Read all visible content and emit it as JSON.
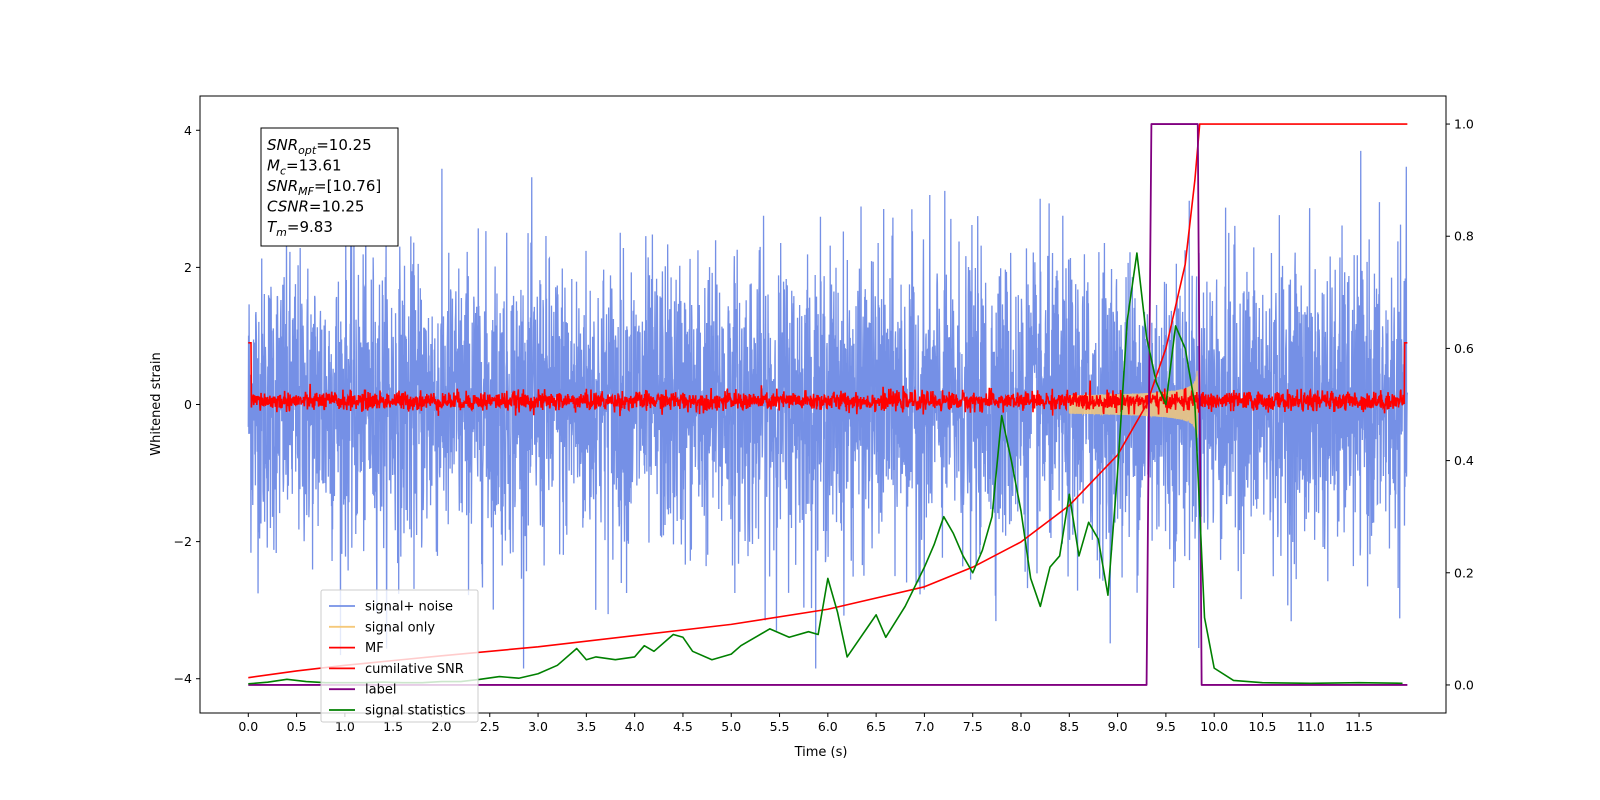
{
  "chart_data": {
    "type": "line",
    "xlabel": "Time (s)",
    "ylabel": "Whitened strain",
    "xlim": [
      -0.5,
      12.4
    ],
    "ylim": [
      -4.5,
      4.5
    ],
    "y2lim": [
      -0.05,
      1.05
    ],
    "grid": false,
    "legend_position": "lower-left",
    "x_ticks": [
      "0.0",
      "0.5",
      "1.0",
      "1.5",
      "2.0",
      "2.5",
      "3.0",
      "3.5",
      "4.0",
      "4.5",
      "5.0",
      "5.5",
      "6.0",
      "6.5",
      "7.0",
      "7.5",
      "8.0",
      "8.5",
      "9.0",
      "9.5",
      "10.0",
      "10.5",
      "11.0",
      "11.5"
    ],
    "y_ticks": [
      "−4",
      "−2",
      "0",
      "2",
      "4"
    ],
    "y2_ticks": [
      "0.0",
      "0.2",
      "0.4",
      "0.6",
      "0.8",
      "1.0"
    ],
    "info_box": [
      {
        "sym": "SNR",
        "sub": "opt",
        "val": "=10.25"
      },
      {
        "sym": "M",
        "sub": "c",
        "val": "=13.61"
      },
      {
        "sym": "SNR",
        "sub": "MF",
        "val": "=[10.76]"
      },
      {
        "sym": "CSNR",
        "sub": "",
        "val": "=10.25"
      },
      {
        "sym": "T",
        "sub": "m",
        "val": "=9.83"
      }
    ],
    "series": [
      {
        "name": "signal+ noise",
        "color": "#7590e6",
        "axis": "left",
        "x_range": [
          0,
          12.0
        ],
        "noise_sigma": 1.0,
        "note_values": "random noise, visual range approx -3.8 to 3.7"
      },
      {
        "name": "signal only",
        "color": "#f5c97a",
        "axis": "left",
        "chirp": {
          "t_start": 8.5,
          "t_merge": 9.83,
          "amp_max": 0.95
        }
      },
      {
        "name": "MF",
        "color": "#ff0000",
        "axis": "left",
        "x_range": [
          0,
          12.0
        ],
        "baseline": 0.05,
        "noise_sigma": 0.07,
        "edge_value": 1.0
      },
      {
        "name": "cumilative SNR",
        "color": "#ff0000",
        "axis": "right",
        "x": [
          0.0,
          0.5,
          1.0,
          2.0,
          3.0,
          4.0,
          5.0,
          6.0,
          7.0,
          7.5,
          8.0,
          8.5,
          9.0,
          9.3,
          9.5,
          9.7,
          9.8,
          9.85,
          12.0
        ],
        "values": [
          0.013,
          0.025,
          0.035,
          0.052,
          0.068,
          0.088,
          0.108,
          0.135,
          0.175,
          0.21,
          0.255,
          0.32,
          0.41,
          0.5,
          0.6,
          0.75,
          0.9,
          1.0,
          1.0
        ]
      },
      {
        "name": "label",
        "color": "#800080",
        "axis": "right",
        "x": [
          0.0,
          9.3,
          9.35,
          9.83,
          9.87,
          12.0
        ],
        "values": [
          0.0,
          0.0,
          1.0,
          1.0,
          0.0,
          0.0
        ]
      },
      {
        "name": "signal statistics",
        "color": "#008000",
        "axis": "right",
        "x": [
          0.0,
          0.2,
          0.4,
          0.6,
          0.8,
          1.0,
          1.2,
          1.4,
          1.6,
          1.8,
          2.0,
          2.2,
          2.4,
          2.6,
          2.8,
          3.0,
          3.2,
          3.4,
          3.5,
          3.6,
          3.8,
          4.0,
          4.1,
          4.2,
          4.4,
          4.5,
          4.6,
          4.8,
          5.0,
          5.1,
          5.2,
          5.4,
          5.6,
          5.8,
          5.9,
          6.0,
          6.1,
          6.2,
          6.4,
          6.5,
          6.6,
          6.8,
          7.0,
          7.1,
          7.2,
          7.3,
          7.4,
          7.5,
          7.6,
          7.7,
          7.8,
          7.9,
          8.0,
          8.1,
          8.2,
          8.3,
          8.4,
          8.5,
          8.6,
          8.7,
          8.8,
          8.9,
          9.0,
          9.1,
          9.2,
          9.3,
          9.4,
          9.5,
          9.6,
          9.7,
          9.8,
          9.9,
          10.0,
          10.2,
          10.5,
          11.0,
          11.5,
          11.95
        ],
        "values": [
          0.002,
          0.005,
          0.01,
          0.006,
          0.004,
          0.004,
          0.004,
          0.005,
          0.004,
          0.004,
          0.006,
          0.006,
          0.01,
          0.015,
          0.012,
          0.02,
          0.035,
          0.065,
          0.045,
          0.05,
          0.045,
          0.05,
          0.07,
          0.06,
          0.09,
          0.085,
          0.06,
          0.045,
          0.055,
          0.07,
          0.08,
          0.1,
          0.085,
          0.095,
          0.09,
          0.19,
          0.13,
          0.05,
          0.1,
          0.125,
          0.085,
          0.14,
          0.21,
          0.25,
          0.3,
          0.27,
          0.23,
          0.2,
          0.24,
          0.3,
          0.48,
          0.4,
          0.31,
          0.19,
          0.14,
          0.21,
          0.23,
          0.34,
          0.23,
          0.29,
          0.26,
          0.16,
          0.38,
          0.65,
          0.77,
          0.62,
          0.54,
          0.5,
          0.64,
          0.6,
          0.5,
          0.12,
          0.03,
          0.008,
          0.004,
          0.003,
          0.004,
          0.003
        ]
      }
    ]
  }
}
